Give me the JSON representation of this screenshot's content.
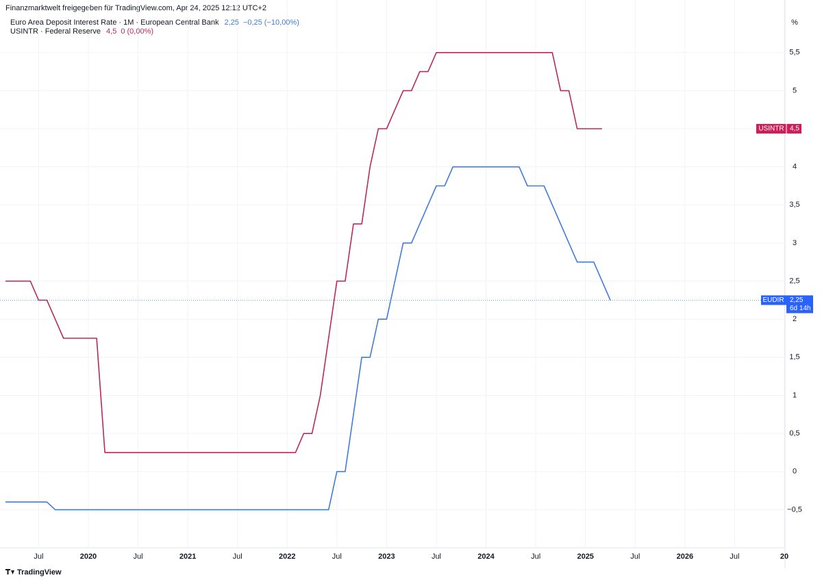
{
  "chart_data": {
    "type": "line",
    "title": "Finanzmarktwelt freigegeben für TradingView.com, Apr 24, 2025 12:12 UTC+2",
    "brand": "TradingView",
    "y_unit": "%",
    "grid": true,
    "x": [
      "2019-03",
      "2019-04",
      "2019-05",
      "2019-06",
      "2019-07",
      "2019-08",
      "2019-09",
      "2019-10",
      "2019-11",
      "2019-12",
      "2020-01",
      "2020-02",
      "2020-03",
      "2020-04",
      "2020-05",
      "2020-06",
      "2020-07",
      "2020-08",
      "2020-09",
      "2020-10",
      "2020-11",
      "2020-12",
      "2021-01",
      "2021-02",
      "2021-03",
      "2021-04",
      "2021-05",
      "2021-06",
      "2021-07",
      "2021-08",
      "2021-09",
      "2021-10",
      "2021-11",
      "2021-12",
      "2022-01",
      "2022-02",
      "2022-03",
      "2022-04",
      "2022-05",
      "2022-06",
      "2022-07",
      "2022-08",
      "2022-09",
      "2022-10",
      "2022-11",
      "2022-12",
      "2023-01",
      "2023-02",
      "2023-03",
      "2023-04",
      "2023-05",
      "2023-06",
      "2023-07",
      "2023-08",
      "2023-09",
      "2023-10",
      "2023-11",
      "2023-12",
      "2024-01",
      "2024-02",
      "2024-03",
      "2024-04",
      "2024-05",
      "2024-06",
      "2024-07",
      "2024-08",
      "2024-09",
      "2024-10",
      "2024-11",
      "2024-12",
      "2025-01",
      "2025-02",
      "2025-03",
      "2025-04"
    ],
    "series": [
      {
        "name": "Euro Area Deposit Interest Rate · 1M · European Central Bank",
        "symbol": "EUDIR",
        "color": "#3f7bd9",
        "badge_color": "#2962ff",
        "last_label": "2,25",
        "change_label": "−0,25 (−10,00%)",
        "countdown": "6d 14h",
        "values": [
          -0.4,
          -0.4,
          -0.4,
          -0.4,
          -0.4,
          -0.4,
          -0.5,
          -0.5,
          -0.5,
          -0.5,
          -0.5,
          -0.5,
          -0.5,
          -0.5,
          -0.5,
          -0.5,
          -0.5,
          -0.5,
          -0.5,
          -0.5,
          -0.5,
          -0.5,
          -0.5,
          -0.5,
          -0.5,
          -0.5,
          -0.5,
          -0.5,
          -0.5,
          -0.5,
          -0.5,
          -0.5,
          -0.5,
          -0.5,
          -0.5,
          -0.5,
          -0.5,
          -0.5,
          -0.5,
          -0.5,
          0,
          0,
          0.75,
          1.5,
          1.5,
          2,
          2,
          2.5,
          3,
          3,
          3.25,
          3.5,
          3.75,
          3.75,
          4,
          4,
          4,
          4,
          4,
          4,
          4,
          4,
          4,
          3.75,
          3.75,
          3.75,
          3.5,
          3.25,
          3,
          2.75,
          2.75,
          2.75,
          2.5,
          2.25
        ]
      },
      {
        "name": "USINTR · Federal Reserve",
        "symbol": "USINTR",
        "color": "#b8285c",
        "badge_color": "#cc1f5a",
        "last_label": "4,5",
        "change_label": "0 (0,00%)",
        "values": [
          2.5,
          2.5,
          2.5,
          2.5,
          2.25,
          2.25,
          2,
          1.75,
          1.75,
          1.75,
          1.75,
          1.75,
          0.25,
          0.25,
          0.25,
          0.25,
          0.25,
          0.25,
          0.25,
          0.25,
          0.25,
          0.25,
          0.25,
          0.25,
          0.25,
          0.25,
          0.25,
          0.25,
          0.25,
          0.25,
          0.25,
          0.25,
          0.25,
          0.25,
          0.25,
          0.25,
          0.5,
          0.5,
          1,
          1.75,
          2.5,
          2.5,
          3.25,
          3.25,
          4,
          4.5,
          4.5,
          4.75,
          5,
          5,
          5.25,
          5.25,
          5.5,
          5.5,
          5.5,
          5.5,
          5.5,
          5.5,
          5.5,
          5.5,
          5.5,
          5.5,
          5.5,
          5.5,
          5.5,
          5.5,
          5.5,
          5,
          5,
          4.5,
          4.5,
          4.5,
          4.5,
          null
        ]
      }
    ],
    "xlim": [
      "2019-03",
      "2027-01"
    ],
    "xticks": [
      {
        "value": "2019-07",
        "label": "Jul"
      },
      {
        "value": "2020-01",
        "label": "2020"
      },
      {
        "value": "2020-07",
        "label": "Jul"
      },
      {
        "value": "2021-01",
        "label": "2021"
      },
      {
        "value": "2021-07",
        "label": "Jul"
      },
      {
        "value": "2022-01",
        "label": "2022"
      },
      {
        "value": "2022-07",
        "label": "Jul"
      },
      {
        "value": "2023-01",
        "label": "2023"
      },
      {
        "value": "2023-07",
        "label": "Jul"
      },
      {
        "value": "2024-01",
        "label": "2024"
      },
      {
        "value": "2024-07",
        "label": "Jul"
      },
      {
        "value": "2025-01",
        "label": "2025"
      },
      {
        "value": "2025-07",
        "label": "Jul"
      },
      {
        "value": "2026-01",
        "label": "2026"
      },
      {
        "value": "2026-07",
        "label": "Jul"
      },
      {
        "value": "2027-01",
        "label": "20"
      }
    ],
    "ylim": [
      -1.0,
      6.1
    ],
    "yticks": [
      {
        "value": -0.5,
        "label": "−0,5"
      },
      0,
      {
        "value": 0.5,
        "label": "0,5"
      },
      1,
      {
        "value": 1.5,
        "label": "1,5"
      },
      2,
      {
        "value": 2.5,
        "label": "2,5"
      },
      3,
      {
        "value": 3.5,
        "label": "3,5"
      },
      4,
      {
        "value": 4.5,
        "label": "4,5"
      },
      5,
      {
        "value": 5.5,
        "label": "5,5"
      }
    ]
  }
}
